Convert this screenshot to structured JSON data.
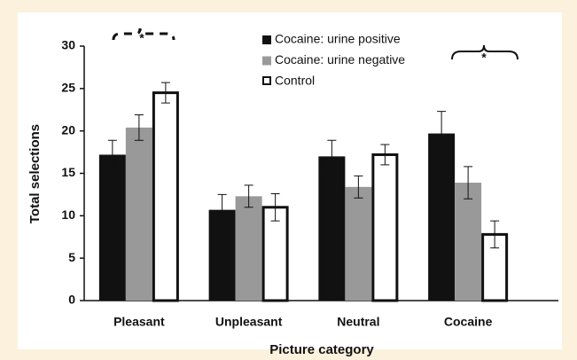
{
  "chart_data": {
    "type": "bar",
    "xlabel": "Picture category",
    "ylabel": "Total selections",
    "categories": [
      "Pleasant",
      "Unpleasant",
      "Neutral",
      "Cocaine"
    ],
    "series": [
      {
        "name": "Cocaine: urine positive",
        "color": "#111111",
        "values": [
          17.2,
          10.7,
          17.0,
          19.7
        ],
        "errors": [
          1.7,
          1.8,
          1.9,
          2.6
        ]
      },
      {
        "name": "Cocaine: urine negative",
        "color": "#999999",
        "values": [
          20.4,
          12.3,
          13.4,
          13.9
        ],
        "errors": [
          1.5,
          1.3,
          1.3,
          1.9
        ]
      },
      {
        "name": "Control",
        "color": "#ffffff",
        "values": [
          24.5,
          11.0,
          17.2,
          7.8
        ],
        "errors": [
          1.2,
          1.6,
          1.2,
          1.6
        ]
      }
    ],
    "ylim": [
      0,
      30
    ],
    "yticks": [
      0,
      5,
      10,
      15,
      20,
      25,
      30
    ],
    "annotations": [
      "*",
      "*"
    ]
  }
}
